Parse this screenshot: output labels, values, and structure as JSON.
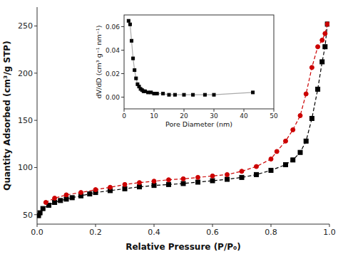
{
  "chart_data": [
    {
      "type": "line",
      "xlabel": "Relative Pressure (P/P₀)",
      "ylabel": "Quantity Adsorbed (cm³/g STP)",
      "xlim": [
        0.0,
        1.0
      ],
      "ylim": [
        40,
        270
      ],
      "xticks": [
        {
          "value": 0,
          "label": "0.0"
        },
        0.2,
        0.4,
        0.6,
        0.8,
        {
          "value": 1.0,
          "label": "1.0"
        }
      ],
      "yticks": [
        50,
        100,
        150,
        200,
        250
      ],
      "grid": false,
      "series": [
        {
          "color": "#000000",
          "marker": "square",
          "line_style": "dashed",
          "x": [
            0.005,
            0.01,
            0.02,
            0.04,
            0.06,
            0.08,
            0.1,
            0.12,
            0.15,
            0.18,
            0.2,
            0.25,
            0.3,
            0.35,
            0.4,
            0.45,
            0.5,
            0.55,
            0.6,
            0.65,
            0.7,
            0.75,
            0.8,
            0.85,
            0.875,
            0.9,
            0.92,
            0.94,
            0.96,
            0.975,
            0.985,
            0.993
          ],
          "values": [
            49.0,
            52.0,
            56.5,
            60.0,
            63.0,
            65.0,
            66.5,
            68.0,
            70.0,
            72.0,
            73.5,
            75.5,
            77.5,
            79.5,
            81.0,
            82.0,
            83.0,
            84.5,
            86.0,
            87.5,
            89.5,
            92.5,
            97.0,
            103.0,
            108.0,
            116.0,
            128.0,
            152.0,
            183.0,
            212.0,
            228.0,
            252.0
          ]
        },
        {
          "color": "#cc0000",
          "marker": "circle",
          "line_style": "dashed",
          "x": [
            0.993,
            0.985,
            0.975,
            0.96,
            0.94,
            0.92,
            0.9,
            0.875,
            0.85,
            0.82,
            0.8,
            0.75,
            0.7,
            0.65,
            0.6,
            0.55,
            0.5,
            0.45,
            0.4,
            0.35,
            0.3,
            0.25,
            0.2,
            0.15,
            0.1,
            0.06,
            0.03
          ],
          "values": [
            252.0,
            242.0,
            235.0,
            228.0,
            206.0,
            178.0,
            155.0,
            140.0,
            128.0,
            117.0,
            109.0,
            101.0,
            96.0,
            92.5,
            91.0,
            89.5,
            88.0,
            87.0,
            85.5,
            84.0,
            82.0,
            79.0,
            76.5,
            73.5,
            71.0,
            67.5,
            63.0
          ]
        }
      ]
    },
    {
      "type": "line",
      "xlabel": "Pore Diameter (nm)",
      "ylabel": "dV/dD (cm³ g⁻¹ nm⁻¹)",
      "xlim": [
        0,
        50
      ],
      "ylim": [
        -0.01,
        0.07
      ],
      "xticks": [
        0,
        10,
        20,
        30,
        40,
        50
      ],
      "yticks": [
        {
          "value": 0,
          "label": "0.00"
        },
        0.02,
        0.04,
        0.06
      ],
      "grid": false,
      "series": [
        {
          "type": "line",
          "color": "#aaaaaa",
          "line_style": "solid",
          "x": [
            1.5,
            2.0,
            2.5,
            3.0,
            3.5,
            4.0,
            4.5,
            5.0,
            5.5,
            6.0,
            6.5,
            7.0,
            8.0,
            9.0,
            10.0,
            11.0,
            13.0,
            15.0,
            17.0,
            20.0,
            23.0,
            27.0,
            30.0,
            43.0
          ],
          "values": [
            0.065,
            0.062,
            0.048,
            0.033,
            0.023,
            0.016,
            0.011,
            0.009,
            0.007,
            0.006,
            0.005,
            0.005,
            0.004,
            0.004,
            0.003,
            0.003,
            0.003,
            0.002,
            0.002,
            0.002,
            0.002,
            0.002,
            0.002,
            0.004
          ]
        },
        {
          "type": "scatter",
          "color": "#000000",
          "marker": "square",
          "x": [
            1.5,
            2.0,
            2.5,
            3.0,
            3.5,
            4.0,
            4.5,
            5.0,
            5.5,
            6.0,
            6.5,
            7.0,
            8.0,
            9.0,
            10.0,
            11.0,
            13.0,
            15.0,
            17.0,
            20.0,
            23.0,
            27.0,
            30.0,
            43.0
          ],
          "values": [
            0.065,
            0.062,
            0.048,
            0.033,
            0.023,
            0.016,
            0.011,
            0.009,
            0.007,
            0.006,
            0.005,
            0.005,
            0.004,
            0.004,
            0.003,
            0.003,
            0.003,
            0.002,
            0.002,
            0.002,
            0.002,
            0.002,
            0.002,
            0.004
          ]
        }
      ]
    }
  ]
}
